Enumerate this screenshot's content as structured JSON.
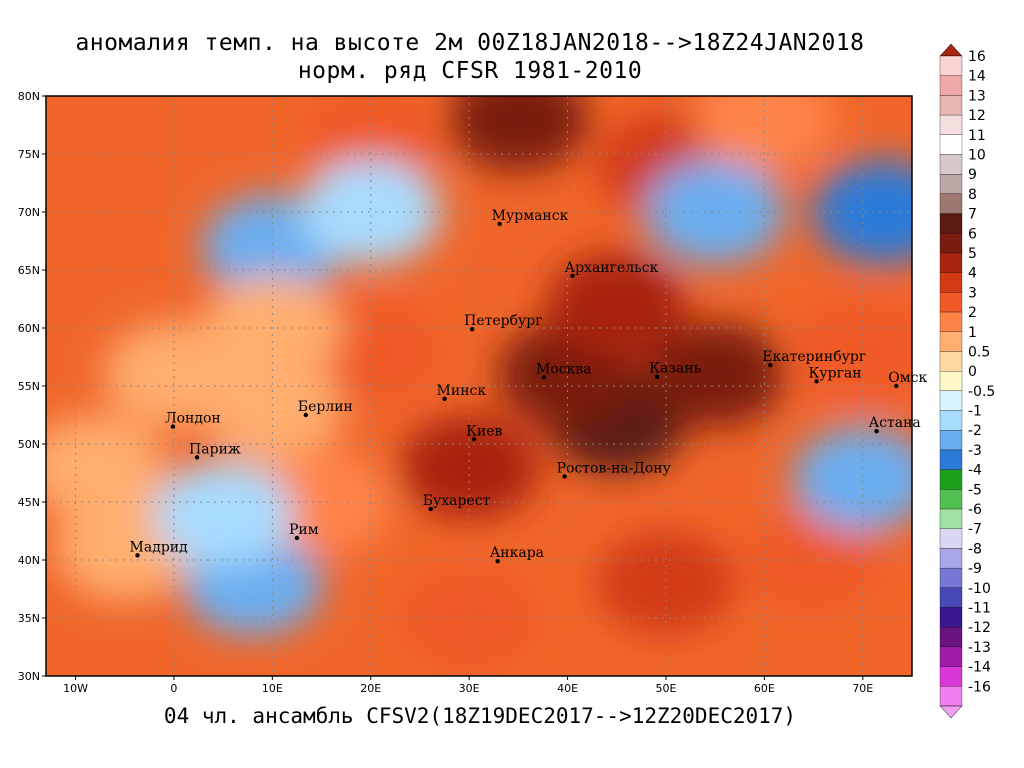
{
  "title_line1": "аномалия темп. на высоте 2м 00Z18JAN2018-->18Z24JAN2018",
  "title_line2": "норм. ряд CFSR 1981-2010",
  "footer": "04 чл. ансамбль CFSV2(18Z19DEC2017-->12Z20DEC2017)",
  "map": {
    "lon_range": [
      -13,
      75
    ],
    "lat_range": [
      30,
      80
    ],
    "lat_ticks": [
      {
        "value": 80,
        "label": "80N"
      },
      {
        "value": 75,
        "label": "75N"
      },
      {
        "value": 70,
        "label": "70N"
      },
      {
        "value": 65,
        "label": "65N"
      },
      {
        "value": 60,
        "label": "60N"
      },
      {
        "value": 55,
        "label": "55N"
      },
      {
        "value": 50,
        "label": "50N"
      },
      {
        "value": 45,
        "label": "45N"
      },
      {
        "value": 40,
        "label": "40N"
      },
      {
        "value": 35,
        "label": "35N"
      },
      {
        "value": 30,
        "label": "30N"
      }
    ],
    "lon_ticks": [
      {
        "value": -10,
        "label": "10W"
      },
      {
        "value": 0,
        "label": "0"
      },
      {
        "value": 10,
        "label": "10E"
      },
      {
        "value": 20,
        "label": "20E"
      },
      {
        "value": 30,
        "label": "30E"
      },
      {
        "value": 40,
        "label": "40E"
      },
      {
        "value": 50,
        "label": "50E"
      },
      {
        "value": 60,
        "label": "60E"
      },
      {
        "value": 70,
        "label": "70E"
      }
    ],
    "cities": [
      {
        "name": "Мурманск",
        "lon": 33.1,
        "lat": 68.97
      },
      {
        "name": "Архангельск",
        "lon": 40.5,
        "lat": 64.5
      },
      {
        "name": "Петербург",
        "lon": 30.3,
        "lat": 59.9
      },
      {
        "name": "Москва",
        "lon": 37.6,
        "lat": 55.75
      },
      {
        "name": "Казань",
        "lon": 49.1,
        "lat": 55.8
      },
      {
        "name": "Екатеринбург",
        "lon": 60.6,
        "lat": 56.8
      },
      {
        "name": "Курган",
        "lon": 65.3,
        "lat": 55.4
      },
      {
        "name": "Омск",
        "lon": 73.4,
        "lat": 55.0
      },
      {
        "name": "Астана",
        "lon": 71.4,
        "lat": 51.1
      },
      {
        "name": "Минск",
        "lon": 27.5,
        "lat": 53.9
      },
      {
        "name": "Киев",
        "lon": 30.5,
        "lat": 50.4
      },
      {
        "name": "Берлин",
        "lon": 13.4,
        "lat": 52.5
      },
      {
        "name": "Лондон",
        "lon": -0.1,
        "lat": 51.5
      },
      {
        "name": "Париж",
        "lon": 2.35,
        "lat": 48.85
      },
      {
        "name": "Ростов-на-Дону",
        "lon": 39.7,
        "lat": 47.2
      },
      {
        "name": "Бухарест",
        "lon": 26.1,
        "lat": 44.4
      },
      {
        "name": "Рим",
        "lon": 12.5,
        "lat": 41.9
      },
      {
        "name": "Мадрид",
        "lon": -3.7,
        "lat": 40.4
      },
      {
        "name": "Анкара",
        "lon": 32.9,
        "lat": 39.9
      }
    ],
    "field_anomalies": [
      {
        "lon": 45,
        "lat": 52,
        "value": 7
      },
      {
        "lon": 40,
        "lat": 56,
        "value": 6
      },
      {
        "lon": 55,
        "lat": 56,
        "value": 6
      },
      {
        "lon": 30,
        "lat": 48,
        "value": 5
      },
      {
        "lon": 45,
        "lat": 62,
        "value": 5
      },
      {
        "lon": 35,
        "lat": 78,
        "value": 6
      },
      {
        "lon": 50,
        "lat": 74,
        "value": 4
      },
      {
        "lon": 20,
        "lat": 76,
        "value": 3
      },
      {
        "lon": 60,
        "lat": 78,
        "value": 2
      },
      {
        "lon": 20,
        "lat": 58,
        "value": 3
      },
      {
        "lon": 10,
        "lat": 53,
        "value": 1
      },
      {
        "lon": 0,
        "lat": 56,
        "value": 1
      },
      {
        "lon": -8,
        "lat": 48,
        "value": 1
      },
      {
        "lon": 10,
        "lat": 67,
        "value": -2
      },
      {
        "lon": 20,
        "lat": 70,
        "value": -1
      },
      {
        "lon": 55,
        "lat": 70,
        "value": -2
      },
      {
        "lon": 72,
        "lat": 70,
        "value": -3
      },
      {
        "lon": 8,
        "lat": 38,
        "value": -2
      },
      {
        "lon": -5,
        "lat": 41,
        "value": 1
      },
      {
        "lon": 30,
        "lat": 35,
        "value": 3
      },
      {
        "lon": 50,
        "lat": 38,
        "value": 4
      },
      {
        "lon": 65,
        "lat": 40,
        "value": 3
      },
      {
        "lon": 70,
        "lat": 47,
        "value": -2
      },
      {
        "lon": 70,
        "lat": 58,
        "value": 3
      },
      {
        "lon": 15,
        "lat": 45,
        "value": 2
      },
      {
        "lon": 10,
        "lat": 60,
        "value": 1
      },
      {
        "lon": 5,
        "lat": 44,
        "value": -1
      }
    ]
  },
  "colorbar": {
    "labels": [
      "16",
      "14",
      "13",
      "12",
      "11",
      "10",
      "9",
      "8",
      "7",
      "6",
      "5",
      "4",
      "3",
      "2",
      "1",
      "0.5",
      "0",
      "-0.5",
      "-1",
      "-2",
      "-3",
      "-4",
      "-5",
      "-6",
      "-7",
      "-8",
      "-9",
      "-10",
      "-11",
      "-12",
      "-13",
      "-14",
      "-16"
    ],
    "colors": [
      "#fad2d2",
      "#f0a8a8",
      "#e8b4b4",
      "#f4dede",
      "#ffffff",
      "#d8c8c8",
      "#bda8a8",
      "#9c7870",
      "#5a1a12",
      "#7a1c10",
      "#a82410",
      "#d23a16",
      "#f05a28",
      "#ff8448",
      "#ffae70",
      "#ffd9a0",
      "#fff8c8",
      "#d8f4ff",
      "#a8dcff",
      "#6aaef0",
      "#2a7ad8",
      "#1aa01a",
      "#50c050",
      "#a0e0a0",
      "#d8d8f4",
      "#a8a8e8",
      "#7878d8",
      "#4848b8",
      "#3a1890",
      "#6a1480",
      "#a01ca8",
      "#d838d8",
      "#f080f0"
    ],
    "ends": {
      "top": "#a82410",
      "bottom": "#f0a0f0"
    }
  }
}
